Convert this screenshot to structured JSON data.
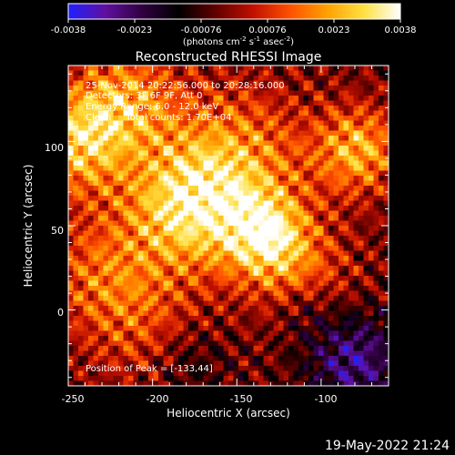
{
  "colorbar": {
    "tick_labels": [
      "-0.0038",
      "-0.0023",
      "-0.00076",
      "0.00076",
      "0.0023",
      "0.0038"
    ],
    "units_base": "(photons cm",
    "units_exp1": "-2",
    "units_mid1": " s",
    "units_exp2": "-1",
    "units_mid2": " asec",
    "units_exp3": "-2",
    "units_end": ")"
  },
  "title": "Reconstructed RHESSI Image",
  "info": {
    "line1": "25-Nov-2014 20:22:56.000 to 20:28:16.000",
    "line2": "Detectors: 3F 6F 9F, Att 0",
    "line3": "Energy Range: 6.0 - 12.0 keV",
    "line4": "Clean     Total counts: 1.70E+04"
  },
  "peak_label": "Position of Peak = [-133,44]",
  "x_axis": {
    "title": "Heliocentric X (arcsec)",
    "tick_labels": [
      "-250",
      "-200",
      "-150",
      "-100"
    ]
  },
  "y_axis": {
    "title": "Heliocentric Y (arcsec)",
    "tick_labels": [
      "0",
      "50",
      "100"
    ]
  },
  "footer": "19-May-2022 21:24",
  "image_data": {
    "type": "heatmap",
    "colormap": [
      "#2020ff",
      "#6010a0",
      "#300040",
      "#000000",
      "#600000",
      "#c01000",
      "#ff5000",
      "#ffa000",
      "#ffe040",
      "#ffffff"
    ],
    "x_range": [
      -250,
      -60
    ],
    "y_range": [
      -45,
      145
    ],
    "peak": [
      -133,
      44
    ],
    "sources": [
      {
        "x": -245,
        "y": 100,
        "amp": 0.95,
        "w": 22
      },
      {
        "x": -180,
        "y": 60,
        "amp": 1.0,
        "w": 26
      },
      {
        "x": -133,
        "y": 44,
        "amp": 1.0,
        "w": 18
      },
      {
        "x": -150,
        "y": 90,
        "amp": 0.7,
        "w": 30
      },
      {
        "x": -78,
        "y": 95,
        "amp": 0.85,
        "w": 18
      },
      {
        "x": -215,
        "y": 125,
        "amp": 0.7,
        "w": 22
      },
      {
        "x": -230,
        "y": 20,
        "amp": 0.55,
        "w": 25
      },
      {
        "x": -110,
        "y": 20,
        "amp": 0.45,
        "w": 22
      },
      {
        "x": -200,
        "y": -15,
        "amp": 0.4,
        "w": 25
      }
    ],
    "cold_spots": [
      {
        "x": -80,
        "y": -30,
        "amp": -0.75,
        "w": 20
      },
      {
        "x": -180,
        "y": -30,
        "amp": -0.35,
        "w": 18
      },
      {
        "x": -110,
        "y": 0,
        "amp": -0.3,
        "w": 12
      }
    ]
  }
}
